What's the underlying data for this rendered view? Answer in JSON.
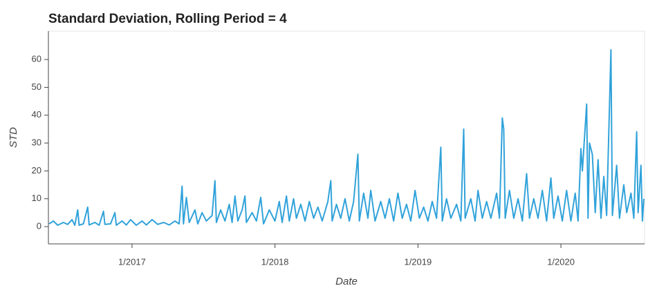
{
  "chart_data": {
    "type": "line",
    "title": "Standard Deviation, Rolling Period = 4",
    "xlabel": "Date",
    "ylabel": "STD",
    "color": "#30a2da",
    "x": [
      2016.42,
      2016.45,
      2016.48,
      2016.52,
      2016.55,
      2016.58,
      2016.6,
      2016.62,
      2016.63,
      2016.66,
      2016.69,
      2016.7,
      2016.74,
      2016.77,
      2016.8,
      2016.81,
      2016.85,
      2016.88,
      2016.89,
      2016.93,
      2016.96,
      2016.99,
      2017.03,
      2017.07,
      2017.1,
      2017.14,
      2017.18,
      2017.22,
      2017.26,
      2017.3,
      2017.33,
      2017.35,
      2017.36,
      2017.38,
      2017.4,
      2017.44,
      2017.46,
      2017.49,
      2017.52,
      2017.56,
      2017.58,
      2017.59,
      2017.62,
      2017.65,
      2017.68,
      2017.7,
      2017.72,
      2017.74,
      2017.77,
      2017.79,
      2017.8,
      2017.84,
      2017.87,
      2017.9,
      2017.92,
      2017.96,
      2018.0,
      2018.03,
      2018.05,
      2018.08,
      2018.1,
      2018.13,
      2018.15,
      2018.18,
      2018.21,
      2018.24,
      2018.27,
      2018.3,
      2018.33,
      2018.37,
      2018.39,
      2018.4,
      2018.43,
      2018.46,
      2018.49,
      2018.52,
      2018.55,
      2018.58,
      2018.59,
      2018.62,
      2018.65,
      2018.67,
      2018.7,
      2018.74,
      2018.77,
      2018.8,
      2018.83,
      2018.86,
      2018.89,
      2018.92,
      2018.95,
      2018.98,
      2019.01,
      2019.04,
      2019.07,
      2019.1,
      2019.13,
      2019.16,
      2019.17,
      2019.2,
      2019.23,
      2019.27,
      2019.3,
      2019.32,
      2019.33,
      2019.37,
      2019.4,
      2019.42,
      2019.45,
      2019.48,
      2019.51,
      2019.55,
      2019.57,
      2019.59,
      2019.6,
      2019.61,
      2019.64,
      2019.67,
      2019.7,
      2019.73,
      2019.76,
      2019.78,
      2019.81,
      2019.84,
      2019.87,
      2019.9,
      2019.93,
      2019.95,
      2019.98,
      2020.01,
      2020.04,
      2020.07,
      2020.1,
      2020.12,
      2020.14,
      2020.15,
      2020.18,
      2020.19,
      2020.2,
      2020.22,
      2020.24,
      2020.26,
      2020.28,
      2020.3,
      2020.32,
      2020.35,
      2020.36,
      2020.39,
      2020.41,
      2020.44,
      2020.46,
      2020.49,
      2020.51,
      2020.53,
      2020.54,
      2020.56,
      2020.57,
      2020.58
    ],
    "values": [
      1,
      2,
      0.5,
      1.5,
      0.8,
      2.5,
      0.5,
      6,
      0.5,
      1,
      7,
      0.6,
      1.5,
      0.5,
      5.5,
      0.8,
      1,
      5,
      0.5,
      2,
      0.6,
      2.5,
      0.5,
      2,
      0.6,
      2.5,
      0.8,
      1.5,
      0.6,
      2,
      1,
      14.5,
      1,
      10.5,
      1.5,
      6,
      1,
      5,
      2,
      4,
      16.5,
      1.5,
      6,
      2,
      8,
      1.5,
      11,
      2,
      6,
      11,
      1.5,
      5,
      2,
      10.5,
      1,
      6,
      2,
      9,
      1.5,
      11,
      2,
      10,
      3,
      8,
      2,
      9,
      3,
      7,
      2,
      9,
      16.5,
      2,
      8,
      3,
      10,
      2,
      9,
      26,
      2,
      12,
      3,
      13,
      2,
      9,
      3,
      10,
      2,
      12,
      3,
      8,
      2,
      13,
      3,
      7,
      2,
      9,
      3,
      28.5,
      2,
      10,
      3,
      8,
      2,
      35,
      3,
      10,
      2,
      13,
      3,
      9,
      3,
      12,
      3,
      39,
      35,
      3,
      13,
      3,
      10,
      2,
      19,
      3,
      10,
      3,
      13,
      2,
      17.5,
      3,
      11,
      2,
      13,
      2,
      12,
      2,
      28,
      20,
      44,
      3,
      30,
      26,
      5,
      24,
      3,
      18,
      4,
      63.5,
      4,
      22,
      3,
      15,
      5,
      12,
      3,
      34,
      5,
      22,
      2,
      10
    ],
    "xlim": [
      2016.415,
      2020.585
    ],
    "xticks": [
      {
        "value": 2017,
        "label": "1/2017"
      },
      {
        "value": 2018,
        "label": "1/2018"
      },
      {
        "value": 2019,
        "label": "1/2019"
      },
      {
        "value": 2020,
        "label": "1/2020"
      }
    ],
    "ylim": [
      -6.2,
      70.2
    ],
    "yticks": [
      0,
      10,
      20,
      30,
      40,
      50,
      60
    ]
  }
}
